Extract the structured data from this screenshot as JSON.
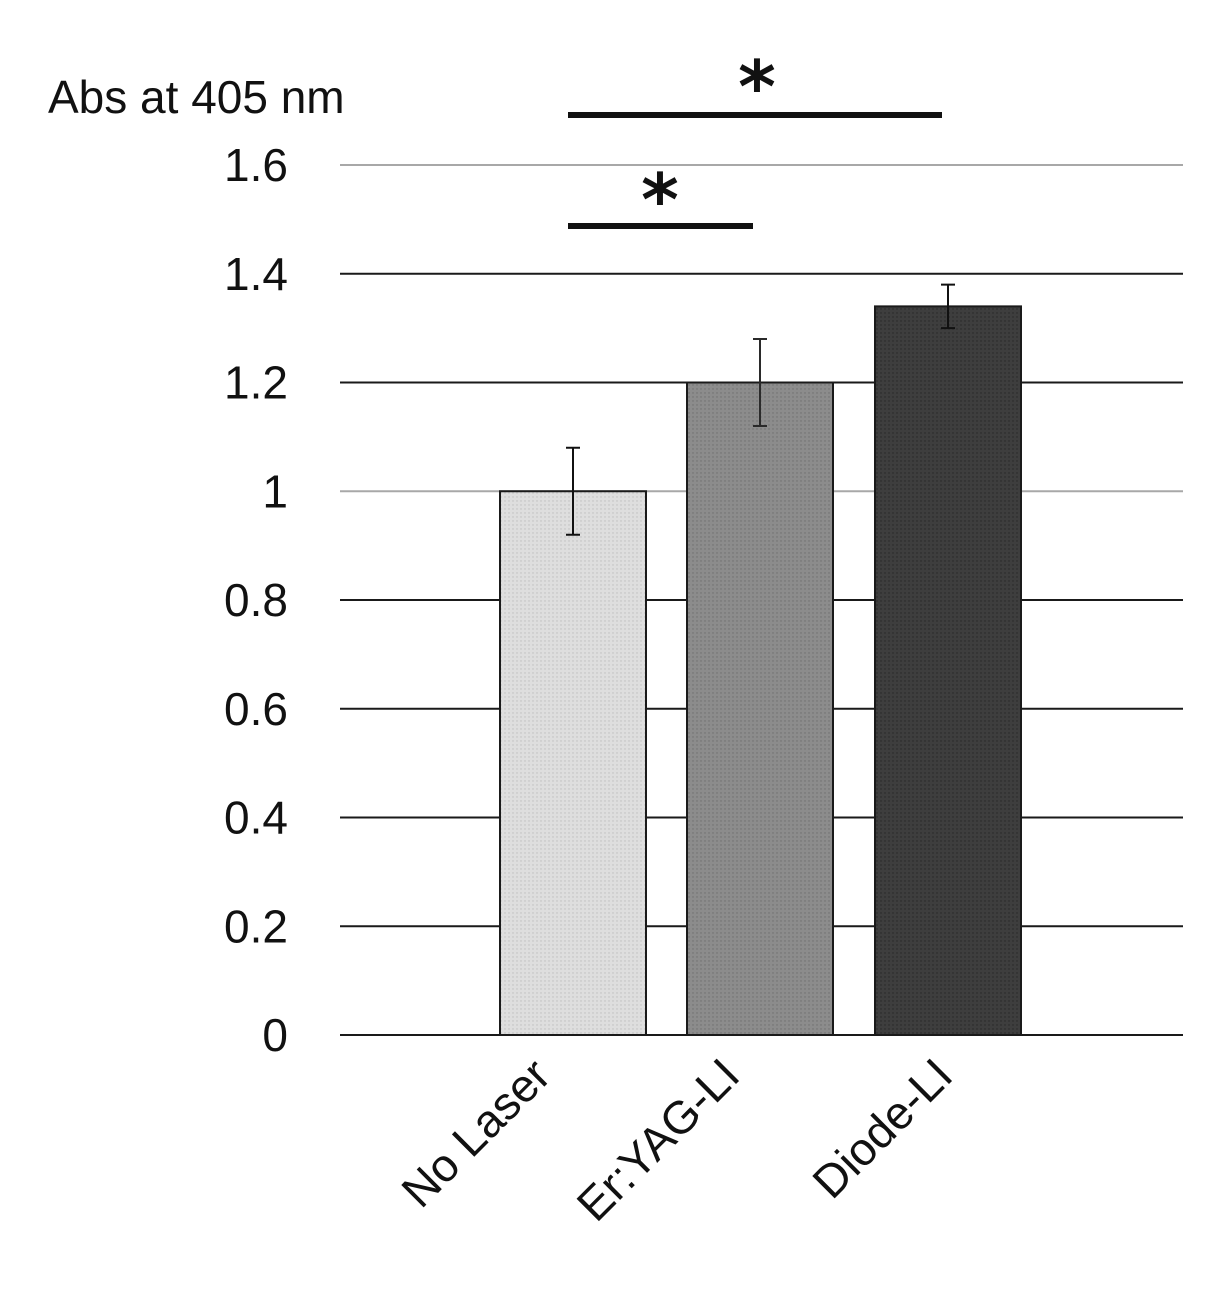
{
  "chart_data": {
    "type": "bar",
    "ylabel": "Abs at 405 nm",
    "xlabel": "",
    "ylim": [
      0,
      1.6
    ],
    "yticks": [
      0,
      0.2,
      0.4,
      0.6,
      0.8,
      1,
      1.2,
      1.4,
      1.6
    ],
    "ytick_labels": [
      "0",
      "0.2",
      "0.4",
      "0.6",
      "0.8",
      "1",
      "1.2",
      "1.4",
      "1.6"
    ],
    "grid": true,
    "categories": [
      "No Laser",
      "Er:YAG-LI",
      "Diode-LI"
    ],
    "values": [
      1.0,
      1.2,
      1.34
    ],
    "errors": [
      0.08,
      0.08,
      0.04
    ],
    "bar_colors": [
      "#dcdcdc",
      "#8a8a8a",
      "#3c3c3c"
    ],
    "significance": [
      {
        "from": "No Laser",
        "to": "Diode-LI",
        "label": "*"
      },
      {
        "from": "No Laser",
        "to": "Er:YAG-LI",
        "label": "*"
      }
    ]
  }
}
